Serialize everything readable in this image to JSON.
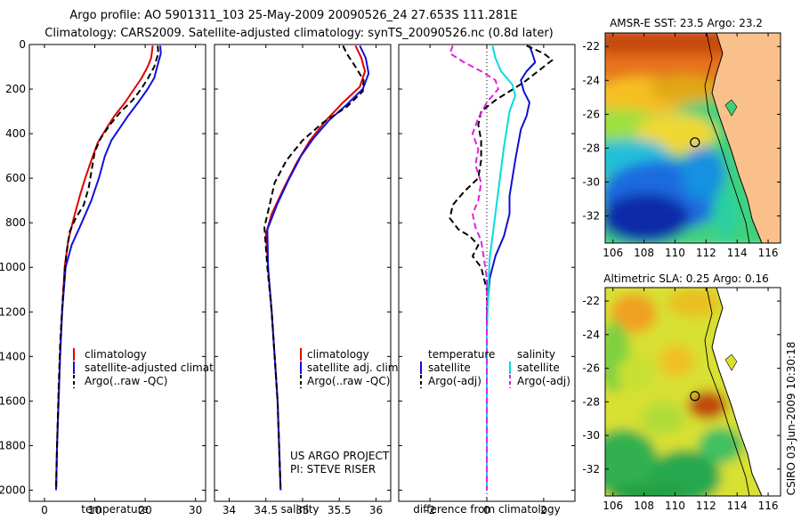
{
  "header": {
    "line1": "Argo profile: AO 5901311_103 25-May-2009 20090526_24 27.653S 111.281E",
    "line2": "Climatology: CARS2009. Satellite-adjusted climatology: synTS_20090526.nc (0.8d later)"
  },
  "chart_data": [
    {
      "type": "line",
      "xlabel": "temperature",
      "xlim": [
        -3,
        32
      ],
      "ylim": [
        2050,
        0
      ],
      "y_reversed": true,
      "xticks": [
        0,
        10,
        20,
        30
      ],
      "yticks": [
        0,
        200,
        400,
        600,
        800,
        1000,
        1200,
        1400,
        1600,
        1800,
        2000
      ],
      "legend": [
        "climatology",
        "satellite-adjusted climatology",
        "Argo(..raw -QC)"
      ],
      "series": [
        {
          "name": "climatology",
          "color": "#e00000",
          "style": "solid",
          "points": [
            [
              21.5,
              5
            ],
            [
              21.2,
              60
            ],
            [
              20.5,
              100
            ],
            [
              19.3,
              150
            ],
            [
              17.8,
              200
            ],
            [
              16.0,
              260
            ],
            [
              13.9,
              320
            ],
            [
              12.2,
              380
            ],
            [
              10.6,
              440
            ],
            [
              9.3,
              520
            ],
            [
              8.1,
              600
            ],
            [
              7.0,
              680
            ],
            [
              5.8,
              780
            ],
            [
              4.7,
              880
            ],
            [
              4.0,
              1000
            ],
            [
              3.5,
              1200
            ],
            [
              3.1,
              1400
            ],
            [
              2.8,
              1600
            ],
            [
              2.5,
              1800
            ],
            [
              2.3,
              2000
            ]
          ]
        },
        {
          "name": "satellite-adjusted climatology",
          "color": "#1010e0",
          "style": "solid",
          "points": [
            [
              23.0,
              5
            ],
            [
              23.1,
              40
            ],
            [
              22.5,
              90
            ],
            [
              21.8,
              150
            ],
            [
              20.5,
              200
            ],
            [
              18.6,
              260
            ],
            [
              16.6,
              320
            ],
            [
              14.8,
              380
            ],
            [
              13.3,
              430
            ],
            [
              12.0,
              500
            ],
            [
              10.8,
              600
            ],
            [
              9.3,
              700
            ],
            [
              7.4,
              800
            ],
            [
              5.4,
              900
            ],
            [
              4.2,
              1000
            ],
            [
              3.5,
              1200
            ],
            [
              3.1,
              1400
            ],
            [
              2.8,
              1600
            ],
            [
              2.5,
              1800
            ],
            [
              2.3,
              2000
            ]
          ]
        },
        {
          "name": "Argo(..raw -QC)",
          "color": "#000000",
          "style": "dash",
          "points": [
            [
              22.5,
              5
            ],
            [
              22.6,
              40
            ],
            [
              21.8,
              100
            ],
            [
              20.6,
              150
            ],
            [
              19.2,
              200
            ],
            [
              17.5,
              250
            ],
            [
              15.2,
              300
            ],
            [
              13.0,
              360
            ],
            [
              11.2,
              420
            ],
            [
              10.0,
              480
            ],
            [
              9.4,
              560
            ],
            [
              8.8,
              640
            ],
            [
              7.8,
              720
            ],
            [
              6.2,
              780
            ],
            [
              5.0,
              840
            ],
            [
              4.3,
              950
            ],
            [
              3.6,
              1150
            ],
            [
              3.1,
              1350
            ],
            [
              2.8,
              1550
            ],
            [
              2.5,
              1800
            ],
            [
              2.3,
              2000
            ]
          ]
        }
      ]
    },
    {
      "type": "line",
      "xlabel": "salinity",
      "xlim": [
        33.8,
        36.2
      ],
      "ylim": [
        2050,
        0
      ],
      "y_reversed": true,
      "xticks": [
        34,
        34.5,
        35,
        35.5,
        36
      ],
      "yticks": [
        0,
        200,
        400,
        600,
        800,
        1000,
        1200,
        1400,
        1600,
        1800,
        2000
      ],
      "legend": [
        "climatology",
        "satellite adj. clim.",
        "Argo(..raw -QC)"
      ],
      "annotation": [
        "US ARGO PROJECT",
        "PI: STEVE RISER"
      ],
      "series": [
        {
          "name": "climatology",
          "color": "#e00000",
          "style": "solid",
          "points": [
            [
              35.72,
              5
            ],
            [
              35.8,
              60
            ],
            [
              35.85,
              120
            ],
            [
              35.78,
              190
            ],
            [
              35.55,
              260
            ],
            [
              35.32,
              340
            ],
            [
              35.1,
              430
            ],
            [
              34.92,
              530
            ],
            [
              34.75,
              640
            ],
            [
              34.58,
              760
            ],
            [
              34.5,
              850
            ],
            [
              34.53,
              1000
            ],
            [
              34.58,
              1200
            ],
            [
              34.62,
              1400
            ],
            [
              34.66,
              1600
            ],
            [
              34.68,
              1800
            ],
            [
              34.7,
              2000
            ]
          ]
        },
        {
          "name": "satellite adj. clim.",
          "color": "#1010e0",
          "style": "solid",
          "points": [
            [
              35.78,
              5
            ],
            [
              35.86,
              60
            ],
            [
              35.9,
              130
            ],
            [
              35.82,
              200
            ],
            [
              35.6,
              270
            ],
            [
              35.36,
              340
            ],
            [
              35.15,
              420
            ],
            [
              34.98,
              500
            ],
            [
              34.82,
              600
            ],
            [
              34.65,
              720
            ],
            [
              34.52,
              830
            ],
            [
              34.53,
              1000
            ],
            [
              34.58,
              1200
            ],
            [
              34.62,
              1400
            ],
            [
              34.66,
              1600
            ],
            [
              34.68,
              1800
            ],
            [
              34.7,
              2000
            ]
          ]
        },
        {
          "name": "Argo(..raw -QC)",
          "color": "#000000",
          "style": "dash",
          "points": [
            [
              35.55,
              5
            ],
            [
              35.6,
              40
            ],
            [
              35.72,
              100
            ],
            [
              35.83,
              160
            ],
            [
              35.82,
              210
            ],
            [
              35.6,
              280
            ],
            [
              35.28,
              350
            ],
            [
              35.0,
              430
            ],
            [
              34.78,
              520
            ],
            [
              34.62,
              620
            ],
            [
              34.55,
              720
            ],
            [
              34.48,
              820
            ],
            [
              34.52,
              1000
            ],
            [
              34.58,
              1200
            ],
            [
              34.62,
              1400
            ],
            [
              34.66,
              1600
            ],
            [
              34.68,
              1800
            ],
            [
              34.7,
              2000
            ]
          ]
        }
      ]
    },
    {
      "type": "line",
      "xlabel": "difference from climatology",
      "xlim": [
        -3.1,
        3.1
      ],
      "ylim": [
        2050,
        0
      ],
      "y_reversed": true,
      "xticks": [
        -2,
        0,
        2
      ],
      "yticks": [
        0,
        200,
        400,
        600,
        800,
        1000,
        1200,
        1400,
        1600,
        1800,
        2000
      ],
      "zero_line": "dotted",
      "legend": {
        "temperature": {
          "title": "temperature",
          "items": [
            "satellite",
            "Argo(-adj)"
          ]
        },
        "salinity": {
          "title": "salinity",
          "items": [
            "satellite",
            "Argo(-adj)"
          ]
        }
      },
      "series": [
        {
          "name": "temperature satellite",
          "color": "#1010d0",
          "style": "solid",
          "points": [
            [
              1.5,
              5
            ],
            [
              1.6,
              40
            ],
            [
              1.7,
              80
            ],
            [
              1.4,
              120
            ],
            [
              1.2,
              160
            ],
            [
              1.3,
              210
            ],
            [
              1.5,
              260
            ],
            [
              1.4,
              320
            ],
            [
              1.2,
              380
            ],
            [
              1.1,
              450
            ],
            [
              1.0,
              520
            ],
            [
              0.9,
              600
            ],
            [
              0.8,
              680
            ],
            [
              0.8,
              760
            ],
            [
              0.6,
              860
            ],
            [
              0.3,
              950
            ],
            [
              0.1,
              1050
            ],
            [
              0,
              1200
            ],
            [
              0,
              2000
            ]
          ]
        },
        {
          "name": "temperature Argo(-adj)",
          "color": "#000000",
          "style": "dash",
          "points": [
            [
              1.4,
              5
            ],
            [
              2.0,
              40
            ],
            [
              2.3,
              70
            ],
            [
              2.0,
              100
            ],
            [
              1.7,
              130
            ],
            [
              1.3,
              170
            ],
            [
              0.8,
              210
            ],
            [
              0.3,
              250
            ],
            [
              -0.2,
              300
            ],
            [
              -0.3,
              360
            ],
            [
              -0.2,
              430
            ],
            [
              -0.2,
              520
            ],
            [
              -0.3,
              600
            ],
            [
              -0.8,
              660
            ],
            [
              -1.2,
              720
            ],
            [
              -1.3,
              780
            ],
            [
              -1.0,
              830
            ],
            [
              -0.6,
              860
            ],
            [
              -0.3,
              900
            ],
            [
              -0.5,
              950
            ],
            [
              -0.2,
              1000
            ],
            [
              0,
              1100
            ],
            [
              0,
              2000
            ]
          ]
        },
        {
          "name": "salinity satellite",
          "color": "#00dddd",
          "style": "solid",
          "points": [
            [
              0.2,
              5
            ],
            [
              0.3,
              60
            ],
            [
              0.5,
              120
            ],
            [
              0.9,
              180
            ],
            [
              1.0,
              230
            ],
            [
              0.8,
              300
            ],
            [
              0.7,
              380
            ],
            [
              0.6,
              460
            ],
            [
              0.5,
              560
            ],
            [
              0.4,
              660
            ],
            [
              0.3,
              760
            ],
            [
              0.2,
              860
            ],
            [
              0.1,
              960
            ],
            [
              0.05,
              1100
            ],
            [
              0,
              1300
            ],
            [
              0,
              2000
            ]
          ]
        },
        {
          "name": "salinity Argo(-adj)",
          "color": "#e020e0",
          "style": "dash",
          "points": [
            [
              -1.2,
              5
            ],
            [
              -1.3,
              40
            ],
            [
              -0.8,
              80
            ],
            [
              -0.2,
              120
            ],
            [
              0.3,
              160
            ],
            [
              0.4,
              200
            ],
            [
              0.0,
              260
            ],
            [
              -0.3,
              330
            ],
            [
              -0.5,
              400
            ],
            [
              -0.3,
              470
            ],
            [
              -0.4,
              540
            ],
            [
              -0.2,
              620
            ],
            [
              -0.3,
              700
            ],
            [
              -0.5,
              760
            ],
            [
              -0.4,
              820
            ],
            [
              -0.2,
              880
            ],
            [
              -0.1,
              960
            ],
            [
              0,
              1050
            ],
            [
              0,
              2000
            ]
          ]
        }
      ]
    },
    {
      "type": "heatmap",
      "title": "AMSR-E SST: 23.5 Argo: 23.2",
      "xlim": [
        105.5,
        116.8
      ],
      "ylim": [
        -33.6,
        -21.2
      ],
      "xticks": [
        106,
        108,
        110,
        112,
        114,
        116
      ],
      "yticks": [
        -22,
        -24,
        -26,
        -28,
        -30,
        -32
      ],
      "marker": {
        "lon": 111.281,
        "lat": -27.653
      },
      "land_color": "#f9c08c"
    },
    {
      "type": "heatmap",
      "title": "Altimetric SLA: 0.25 Argo: 0.16",
      "xlim": [
        105.5,
        116.8
      ],
      "ylim": [
        -33.6,
        -21.2
      ],
      "xticks": [
        106,
        108,
        110,
        112,
        114,
        116
      ],
      "yticks": [
        -22,
        -24,
        -26,
        -28,
        -30,
        -32
      ],
      "marker": {
        "lon": 111.281,
        "lat": -27.653
      },
      "land_color": "#f9c08c"
    }
  ],
  "footer_stamp": "CSIRO 03-Jun-2009 10:30:18"
}
